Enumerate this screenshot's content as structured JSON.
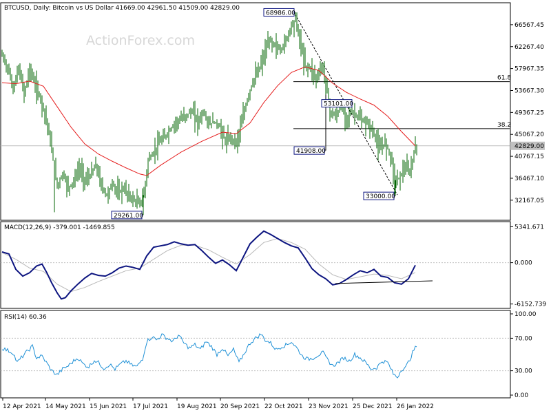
{
  "chart_data": [
    {
      "type": "candlestick",
      "title": "BTCUSD, Daily:  Bitcoin vs US Dollar  41669.00 42961.50 41509.00 42829.00",
      "watermark": "ActionForex.com",
      "last_price": "42829.00",
      "y_range": [
        28500,
        70600
      ],
      "y_ticks": [
        "66567.45",
        "62267.40",
        "57967.35",
        "53667.30",
        "49367.25",
        "45067.20",
        "40767.15",
        "36467.10",
        "32167.05"
      ],
      "x_labels": [
        "12 Apr 2021",
        "14 May 2021",
        "15 Jun 2021",
        "17 Jul 2021",
        "19 Aug 2021",
        "20 Sep 2021",
        "22 Oct 2021",
        "23 Nov 2021",
        "25 Dec 2021",
        "26 Jan 2022"
      ],
      "price_path": [
        [
          0,
          60500
        ],
        [
          8,
          58000
        ],
        [
          16,
          54000
        ],
        [
          24,
          58000
        ],
        [
          32,
          53000
        ],
        [
          40,
          58000
        ],
        [
          48,
          54500
        ],
        [
          56,
          52000
        ],
        [
          64,
          48000
        ],
        [
          72,
          42000
        ],
        [
          76,
          38000
        ],
        [
          80,
          35000
        ],
        [
          88,
          37500
        ],
        [
          96,
          34500
        ],
        [
          104,
          36000
        ],
        [
          112,
          38500
        ],
        [
          120,
          36000
        ],
        [
          128,
          37000
        ],
        [
          136,
          39000
        ],
        [
          144,
          35000
        ],
        [
          152,
          33000
        ],
        [
          160,
          35500
        ],
        [
          168,
          33500
        ],
        [
          176,
          34500
        ],
        [
          184,
          33000
        ],
        [
          192,
          32000
        ],
        [
          200,
          31500
        ],
        [
          206,
          33500
        ],
        [
          212,
          40000
        ],
        [
          220,
          41500
        ],
        [
          228,
          43500
        ],
        [
          236,
          44500
        ],
        [
          244,
          46000
        ],
        [
          252,
          47500
        ],
        [
          260,
          48000
        ],
        [
          268,
          49000
        ],
        [
          276,
          49500
        ],
        [
          284,
          47500
        ],
        [
          292,
          49500
        ],
        [
          300,
          47000
        ],
        [
          308,
          47500
        ],
        [
          316,
          46500
        ],
        [
          324,
          43500
        ],
        [
          332,
          44500
        ],
        [
          340,
          43500
        ],
        [
          348,
          47500
        ],
        [
          356,
          52000
        ],
        [
          364,
          55500
        ],
        [
          372,
          57500
        ],
        [
          380,
          60500
        ],
        [
          388,
          63500
        ],
        [
          396,
          62500
        ],
        [
          404,
          61500
        ],
        [
          412,
          63500
        ],
        [
          420,
          66500
        ],
        [
          426,
          67500
        ],
        [
          432,
          63500
        ],
        [
          440,
          58500
        ],
        [
          448,
          58000
        ],
        [
          456,
          56000
        ],
        [
          464,
          58500
        ],
        [
          470,
          55500
        ],
        [
          476,
          49500
        ],
        [
          484,
          48500
        ],
        [
          492,
          50500
        ],
        [
          500,
          48500
        ],
        [
          508,
          49500
        ],
        [
          516,
          48500
        ],
        [
          524,
          47500
        ],
        [
          532,
          47000
        ],
        [
          540,
          45000
        ],
        [
          548,
          42000
        ],
        [
          556,
          43500
        ],
        [
          564,
          41000
        ],
        [
          570,
          36000
        ],
        [
          576,
          36500
        ],
        [
          584,
          38500
        ],
        [
          592,
          37500
        ],
        [
          598,
          41500
        ],
        [
          602,
          42829
        ]
      ],
      "ma_path": [
        [
          0,
          55200
        ],
        [
          20,
          55000
        ],
        [
          40,
          55500
        ],
        [
          60,
          54500
        ],
        [
          80,
          50500
        ],
        [
          100,
          46500
        ],
        [
          120,
          43200
        ],
        [
          140,
          41200
        ],
        [
          160,
          39800
        ],
        [
          180,
          38500
        ],
        [
          200,
          37300
        ],
        [
          210,
          37000
        ],
        [
          230,
          39000
        ],
        [
          260,
          41600
        ],
        [
          290,
          43700
        ],
        [
          320,
          45500
        ],
        [
          340,
          45200
        ],
        [
          360,
          47300
        ],
        [
          380,
          51300
        ],
        [
          400,
          54600
        ],
        [
          420,
          57200
        ],
        [
          440,
          58300
        ],
        [
          460,
          57600
        ],
        [
          480,
          55100
        ],
        [
          500,
          53300
        ],
        [
          520,
          52000
        ],
        [
          540,
          50800
        ],
        [
          560,
          48600
        ],
        [
          580,
          45600
        ],
        [
          600,
          42800
        ]
      ],
      "fib_levels": [
        {
          "label": "61.8",
          "y": 55400,
          "x_start": 423
        },
        {
          "label": "38.2",
          "y": 46200,
          "x_start": 423
        }
      ],
      "annotations": [
        {
          "text": "68986.00",
          "price": 68986,
          "index": 426,
          "side": "left",
          "box_y": 68986
        },
        {
          "text": "53101.00",
          "price": 53101,
          "index": 510,
          "side": "left",
          "box_y": 51150
        },
        {
          "text": "41908.00",
          "price": 41908,
          "index": 470,
          "side": "left",
          "box_y": 41908
        },
        {
          "text": "33000.00",
          "price": 33000,
          "index": 571,
          "side": "left",
          "box_y": 33000
        },
        {
          "text": "29261.00",
          "price": 29261,
          "index": 205,
          "side": "left",
          "box_y": 29261
        }
      ],
      "trendline": [
        [
          423,
          69200
        ],
        [
          574,
          33200
        ]
      ],
      "breakout_marks": [
        [
          470,
          41908
        ],
        [
          470,
          55600
        ]
      ],
      "colors": {
        "price": "#006400",
        "ma": "#e51c1c",
        "fib": "#000000",
        "trend": "#000000",
        "grid": "#c0c0c0"
      }
    },
    {
      "type": "line",
      "title": "MACD(12,26,9) -379.001 -1469.855",
      "y_range": [
        -6600,
        5800
      ],
      "y_ticks": [
        "5341.671",
        "0.000",
        "-6152.739"
      ],
      "macd_path": [
        [
          0,
          1600
        ],
        [
          10,
          1300
        ],
        [
          20,
          -1000
        ],
        [
          30,
          -2000
        ],
        [
          40,
          -1500
        ],
        [
          50,
          -500
        ],
        [
          58,
          -200
        ],
        [
          65,
          -1500
        ],
        [
          72,
          -3000
        ],
        [
          80,
          -4500
        ],
        [
          86,
          -5400
        ],
        [
          92,
          -5200
        ],
        [
          100,
          -4200
        ],
        [
          110,
          -3200
        ],
        [
          120,
          -2300
        ],
        [
          130,
          -1600
        ],
        [
          140,
          -1900
        ],
        [
          150,
          -2000
        ],
        [
          160,
          -1500
        ],
        [
          170,
          -800
        ],
        [
          180,
          -500
        ],
        [
          190,
          -700
        ],
        [
          200,
          -1000
        ],
        [
          210,
          1000
        ],
        [
          220,
          2300
        ],
        [
          230,
          2500
        ],
        [
          240,
          2700
        ],
        [
          250,
          3100
        ],
        [
          260,
          2800
        ],
        [
          270,
          2600
        ],
        [
          280,
          2700
        ],
        [
          290,
          1800
        ],
        [
          300,
          800
        ],
        [
          310,
          -100
        ],
        [
          320,
          400
        ],
        [
          330,
          -300
        ],
        [
          340,
          -1200
        ],
        [
          350,
          800
        ],
        [
          360,
          2800
        ],
        [
          370,
          3800
        ],
        [
          380,
          4700
        ],
        [
          390,
          4200
        ],
        [
          400,
          3600
        ],
        [
          410,
          3000
        ],
        [
          420,
          2500
        ],
        [
          430,
          2200
        ],
        [
          440,
          700
        ],
        [
          450,
          -900
        ],
        [
          460,
          -1800
        ],
        [
          470,
          -2400
        ],
        [
          480,
          -3300
        ],
        [
          490,
          -3100
        ],
        [
          500,
          -2500
        ],
        [
          510,
          -1800
        ],
        [
          520,
          -1200
        ],
        [
          530,
          -1500
        ],
        [
          540,
          -1000
        ],
        [
          550,
          -2000
        ],
        [
          560,
          -2200
        ],
        [
          570,
          -3000
        ],
        [
          580,
          -3200
        ],
        [
          590,
          -2400
        ],
        [
          600,
          -379
        ]
      ],
      "signal_path": [
        [
          0,
          1500
        ],
        [
          20,
          500
        ],
        [
          40,
          -800
        ],
        [
          60,
          -1300
        ],
        [
          80,
          -3200
        ],
        [
          100,
          -4300
        ],
        [
          120,
          -3700
        ],
        [
          140,
          -2800
        ],
        [
          160,
          -2000
        ],
        [
          180,
          -1200
        ],
        [
          200,
          -800
        ],
        [
          220,
          500
        ],
        [
          240,
          1800
        ],
        [
          260,
          2600
        ],
        [
          280,
          2600
        ],
        [
          300,
          1900
        ],
        [
          320,
          800
        ],
        [
          340,
          -200
        ],
        [
          360,
          1200
        ],
        [
          380,
          3000
        ],
        [
          400,
          3600
        ],
        [
          420,
          3000
        ],
        [
          440,
          2000
        ],
        [
          460,
          -200
        ],
        [
          480,
          -1800
        ],
        [
          500,
          -2500
        ],
        [
          520,
          -2100
        ],
        [
          540,
          -1700
        ],
        [
          560,
          -1900
        ],
        [
          580,
          -2400
        ],
        [
          600,
          -1470
        ]
      ],
      "support_line": [
        [
          484,
          -3100
        ],
        [
          625,
          -2700
        ]
      ],
      "colors": {
        "macd": "#0c1480",
        "signal": "#b8b8b8"
      }
    },
    {
      "type": "line",
      "title": "RSI(14) 60.36",
      "y_range": [
        0,
        100
      ],
      "y_ticks": [
        "100.00",
        "70.00",
        "30.00",
        "0.00"
      ],
      "rsi_path": [
        [
          0,
          58
        ],
        [
          8,
          55
        ],
        [
          16,
          52
        ],
        [
          22,
          40
        ],
        [
          30,
          48
        ],
        [
          38,
          55
        ],
        [
          44,
          60
        ],
        [
          50,
          46
        ],
        [
          58,
          48
        ],
        [
          66,
          38
        ],
        [
          72,
          30
        ],
        [
          80,
          25
        ],
        [
          88,
          32
        ],
        [
          96,
          36
        ],
        [
          104,
          42
        ],
        [
          110,
          46
        ],
        [
          118,
          38
        ],
        [
          126,
          35
        ],
        [
          134,
          43
        ],
        [
          140,
          40
        ],
        [
          148,
          33
        ],
        [
          156,
          38
        ],
        [
          164,
          32
        ],
        [
          172,
          38
        ],
        [
          180,
          42
        ],
        [
          188,
          37
        ],
        [
          196,
          35
        ],
        [
          204,
          45
        ],
        [
          210,
          66
        ],
        [
          218,
          72
        ],
        [
          224,
          68
        ],
        [
          232,
          74
        ],
        [
          240,
          70
        ],
        [
          248,
          66
        ],
        [
          256,
          74
        ],
        [
          264,
          64
        ],
        [
          272,
          58
        ],
        [
          280,
          62
        ],
        [
          288,
          56
        ],
        [
          296,
          66
        ],
        [
          304,
          60
        ],
        [
          312,
          50
        ],
        [
          320,
          58
        ],
        [
          328,
          48
        ],
        [
          336,
          56
        ],
        [
          344,
          40
        ],
        [
          352,
          52
        ],
        [
          360,
          64
        ],
        [
          368,
          70
        ],
        [
          376,
          75
        ],
        [
          382,
          68
        ],
        [
          390,
          64
        ],
        [
          398,
          56
        ],
        [
          406,
          60
        ],
        [
          414,
          62
        ],
        [
          420,
          66
        ],
        [
          428,
          58
        ],
        [
          436,
          48
        ],
        [
          444,
          44
        ],
        [
          452,
          46
        ],
        [
          460,
          50
        ],
        [
          466,
          52
        ],
        [
          472,
          44
        ],
        [
          480,
          36
        ],
        [
          488,
          40
        ],
        [
          496,
          46
        ],
        [
          504,
          42
        ],
        [
          512,
          50
        ],
        [
          520,
          46
        ],
        [
          528,
          40
        ],
        [
          536,
          32
        ],
        [
          544,
          34
        ],
        [
          552,
          42
        ],
        [
          560,
          40
        ],
        [
          568,
          26
        ],
        [
          574,
          22
        ],
        [
          580,
          32
        ],
        [
          586,
          34
        ],
        [
          592,
          44
        ],
        [
          598,
          56
        ],
        [
          602,
          60
        ]
      ],
      "colors": {
        "rsi": "#1e90d6"
      }
    }
  ]
}
